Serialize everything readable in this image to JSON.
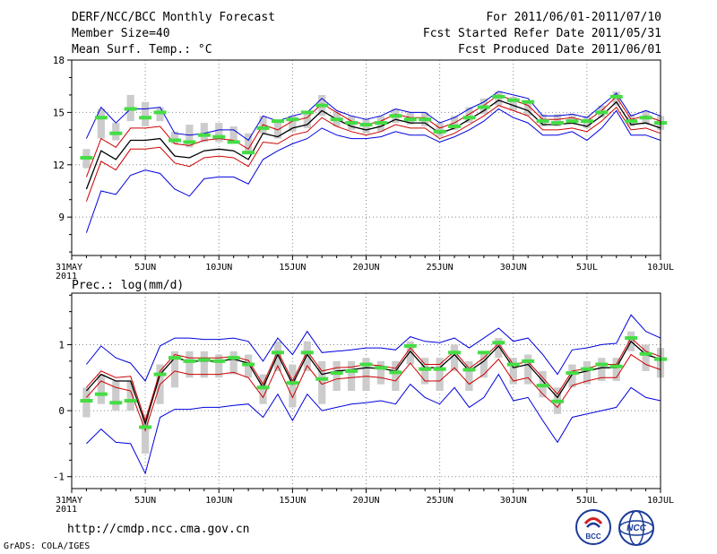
{
  "header": {
    "title": "DERF/NCC/BCC Monthly Forecast",
    "member_size": "Member Size=40",
    "variable": "Mean Surf. Temp.: °C",
    "period": "For 2011/06/01-2011/07/10",
    "fcst_started": "Fcst Started Refer Date 2011/05/31",
    "fcst_produced": "Fcst Produced Date 2011/06/01"
  },
  "precip_title": "Prec.: log(mm/d)",
  "footer": {
    "url": "http://cmdp.ncc.cma.gov.cn",
    "credit": "GrADS: COLA/IGES",
    "logo_bcc": "BCC",
    "logo_ncc": "NCC"
  },
  "colors": {
    "ensemble_mean": "#000000",
    "spread_inner": "#cc0000",
    "spread_outer": "#0000dd",
    "box": "#cccccc",
    "observed": "#44dd44",
    "grid": "#888888"
  },
  "chart_data": [
    {
      "type": "line",
      "title": "Mean Surf. Temp.: °C",
      "x_tick_labels": [
        "31MAY\n2011",
        "5JUN",
        "10JUN",
        "15JUN",
        "20JUN",
        "25JUN",
        "30JUN",
        "5JUL",
        "10JUL"
      ],
      "x_tick_days": [
        0,
        5,
        10,
        15,
        20,
        25,
        30,
        35,
        40
      ],
      "xlim": [
        0,
        40
      ],
      "ylim": [
        6.8,
        18
      ],
      "y_ticks": [
        9,
        12,
        15,
        18
      ],
      "days": [
        1,
        2,
        3,
        4,
        5,
        6,
        7,
        8,
        9,
        10,
        11,
        12,
        13,
        14,
        15,
        16,
        17,
        18,
        19,
        20,
        21,
        22,
        23,
        24,
        25,
        26,
        27,
        28,
        29,
        30,
        31,
        32,
        33,
        34,
        35,
        36,
        37,
        38,
        39,
        40
      ],
      "series": [
        {
          "name": "ensemble_mean",
          "values": [
            10.6,
            12.8,
            12.3,
            13.4,
            13.4,
            13.5,
            12.5,
            12.4,
            12.8,
            12.9,
            12.8,
            12.3,
            13.8,
            13.6,
            14.1,
            14.3,
            15.1,
            14.6,
            14.2,
            14.0,
            14.2,
            14.6,
            14.4,
            14.4,
            13.8,
            14.1,
            14.6,
            15.1,
            15.7,
            15.4,
            15.1,
            14.3,
            14.3,
            14.4,
            14.2,
            14.8,
            15.6,
            14.3,
            14.4,
            14.1
          ]
        },
        {
          "name": "inner_upper",
          "values": [
            11.3,
            13.5,
            13.0,
            14.1,
            14.1,
            14.2,
            13.2,
            13.1,
            13.4,
            13.5,
            13.4,
            12.9,
            14.3,
            14.0,
            14.5,
            14.7,
            15.5,
            15.0,
            14.5,
            14.3,
            14.5,
            14.9,
            14.7,
            14.7,
            14.1,
            14.4,
            14.9,
            15.4,
            16.0,
            15.7,
            15.4,
            14.6,
            14.6,
            14.7,
            14.5,
            15.1,
            15.9,
            14.6,
            14.8,
            14.5
          ]
        },
        {
          "name": "inner_lower",
          "values": [
            9.9,
            12.2,
            11.7,
            12.9,
            12.9,
            13.0,
            12.1,
            11.9,
            12.4,
            12.5,
            12.4,
            11.9,
            13.3,
            13.2,
            13.7,
            13.9,
            14.7,
            14.2,
            13.9,
            13.7,
            13.9,
            14.3,
            14.1,
            14.1,
            13.5,
            13.8,
            14.3,
            14.8,
            15.4,
            15.1,
            14.8,
            14.0,
            14.0,
            14.1,
            13.9,
            14.5,
            15.3,
            14.0,
            14.1,
            13.8
          ]
        },
        {
          "name": "outer_upper",
          "values": [
            13.5,
            15.3,
            14.4,
            15.2,
            15.2,
            15.3,
            13.8,
            13.7,
            13.8,
            14.0,
            14.0,
            13.4,
            14.8,
            14.5,
            14.8,
            15.0,
            15.8,
            15.1,
            14.8,
            14.6,
            14.8,
            15.2,
            15.0,
            15.0,
            14.4,
            14.7,
            15.2,
            15.6,
            16.2,
            16.0,
            15.8,
            14.8,
            14.8,
            14.9,
            14.7,
            15.4,
            16.1,
            14.8,
            15.1,
            14.8
          ]
        },
        {
          "name": "outer_lower",
          "values": [
            8.1,
            10.5,
            10.3,
            11.4,
            11.7,
            11.5,
            10.6,
            10.2,
            11.2,
            11.3,
            11.3,
            10.9,
            12.3,
            12.8,
            13.2,
            13.5,
            14.1,
            13.7,
            13.5,
            13.5,
            13.6,
            13.9,
            13.7,
            13.7,
            13.3,
            13.6,
            14.0,
            14.5,
            15.2,
            14.7,
            14.4,
            13.7,
            13.7,
            13.9,
            13.4,
            14.1,
            15.1,
            13.7,
            13.7,
            13.4
          ]
        }
      ],
      "box_low": [
        11.8,
        13.5,
        13.4,
        14.5,
        14.2,
        14.5,
        13.2,
        13.0,
        13.3,
        13.3,
        13.2,
        12.6,
        13.8,
        13.5,
        13.9,
        14.1,
        14.8,
        14.2,
        14.0,
        13.8,
        13.9,
        14.4,
        14.3,
        14.2,
        13.6,
        14.0,
        14.4,
        14.9,
        15.4,
        15.1,
        14.8,
        14.2,
        14.2,
        14.3,
        14.1,
        14.7,
        15.4,
        14.2,
        14.3,
        14.0
      ],
      "box_high": [
        12.9,
        15.2,
        14.4,
        16.0,
        15.6,
        15.3,
        13.9,
        14.3,
        14.4,
        14.4,
        14.2,
        13.8,
        14.8,
        14.6,
        14.8,
        15.0,
        16.0,
        15.0,
        14.8,
        14.6,
        14.8,
        15.2,
        15.0,
        15.0,
        14.4,
        14.8,
        15.3,
        15.8,
        16.2,
        15.9,
        15.7,
        14.9,
        14.9,
        14.9,
        14.8,
        15.4,
        16.2,
        14.9,
        15.1,
        14.8
      ],
      "observed": [
        12.4,
        14.7,
        13.8,
        15.2,
        14.7,
        15.0,
        13.4,
        13.3,
        13.7,
        13.6,
        13.3,
        12.7,
        14.1,
        14.5,
        14.6,
        15.0,
        15.4,
        14.6,
        14.4,
        14.3,
        14.4,
        14.8,
        14.6,
        14.6,
        13.9,
        14.2,
        14.7,
        15.3,
        15.9,
        15.7,
        15.6,
        14.5,
        14.4,
        14.5,
        14.5,
        15.0,
        15.9,
        14.5,
        14.7,
        14.4
      ]
    },
    {
      "type": "line",
      "title": "Prec.: log(mm/d)",
      "x_tick_labels": [
        "31MAY\n2011",
        "5JUN",
        "10JUN",
        "15JUN",
        "20JUN",
        "25JUN",
        "30JUN",
        "5JUL",
        "10JUL"
      ],
      "x_tick_days": [
        0,
        5,
        10,
        15,
        20,
        25,
        30,
        35,
        40
      ],
      "xlim": [
        0,
        40
      ],
      "ylim": [
        -1.18,
        1.78
      ],
      "y_ticks": [
        -1,
        0,
        1
      ],
      "days": [
        1,
        2,
        3,
        4,
        5,
        6,
        7,
        8,
        9,
        10,
        11,
        12,
        13,
        14,
        15,
        16,
        17,
        18,
        19,
        20,
        21,
        22,
        23,
        24,
        25,
        26,
        27,
        28,
        29,
        30,
        31,
        32,
        33,
        34,
        35,
        36,
        37,
        38,
        39,
        40
      ],
      "series": [
        {
          "name": "ensemble_mean",
          "values": [
            0.3,
            0.55,
            0.45,
            0.45,
            -0.2,
            0.55,
            0.8,
            0.75,
            0.75,
            0.75,
            0.78,
            0.72,
            0.35,
            0.85,
            0.4,
            0.85,
            0.55,
            0.6,
            0.62,
            0.65,
            0.64,
            0.6,
            0.9,
            0.65,
            0.65,
            0.85,
            0.6,
            0.75,
            0.98,
            0.65,
            0.7,
            0.45,
            0.2,
            0.55,
            0.6,
            0.65,
            0.65,
            1.05,
            0.85,
            0.78
          ]
        },
        {
          "name": "inner_upper",
          "values": [
            0.35,
            0.6,
            0.5,
            0.52,
            -0.15,
            0.6,
            0.85,
            0.8,
            0.8,
            0.8,
            0.82,
            0.76,
            0.4,
            0.9,
            0.45,
            0.9,
            0.6,
            0.65,
            0.66,
            0.7,
            0.68,
            0.64,
            0.95,
            0.7,
            0.7,
            0.9,
            0.64,
            0.8,
            1.02,
            0.7,
            0.74,
            0.5,
            0.25,
            0.6,
            0.64,
            0.7,
            0.7,
            1.1,
            0.9,
            0.82
          ]
        },
        {
          "name": "inner_lower",
          "values": [
            0.2,
            0.45,
            0.35,
            0.3,
            -0.3,
            0.4,
            0.6,
            0.55,
            0.55,
            0.55,
            0.58,
            0.5,
            0.2,
            0.68,
            0.2,
            0.68,
            0.4,
            0.48,
            0.5,
            0.52,
            0.5,
            0.45,
            0.72,
            0.45,
            0.45,
            0.65,
            0.4,
            0.55,
            0.78,
            0.45,
            0.5,
            0.25,
            0.05,
            0.38,
            0.45,
            0.5,
            0.5,
            0.85,
            0.7,
            0.62
          ]
        },
        {
          "name": "outer_upper",
          "values": [
            0.7,
            0.98,
            0.8,
            0.72,
            0.45,
            0.98,
            1.1,
            1.1,
            1.08,
            1.08,
            1.1,
            1.05,
            0.75,
            1.1,
            0.85,
            1.2,
            0.88,
            0.9,
            0.92,
            0.95,
            0.95,
            0.92,
            1.12,
            1.05,
            1.03,
            1.1,
            0.95,
            1.1,
            1.25,
            1.05,
            1.1,
            0.85,
            0.55,
            0.92,
            0.95,
            1.0,
            1.02,
            1.45,
            1.2,
            1.1
          ]
        },
        {
          "name": "outer_lower",
          "values": [
            -0.5,
            -0.28,
            -0.48,
            -0.5,
            -0.95,
            -0.1,
            0.02,
            0.02,
            0.05,
            0.05,
            0.08,
            0.1,
            -0.1,
            0.25,
            -0.15,
            0.25,
            0.0,
            0.05,
            0.1,
            0.12,
            0.15,
            0.1,
            0.4,
            0.2,
            0.1,
            0.35,
            0.05,
            0.2,
            0.55,
            0.15,
            0.2,
            -0.15,
            -0.48,
            -0.1,
            -0.05,
            0.0,
            0.05,
            0.35,
            0.2,
            0.15
          ]
        }
      ],
      "box_low": [
        -0.1,
        0.1,
        0.0,
        0.0,
        -0.65,
        0.1,
        0.35,
        0.5,
        0.5,
        0.5,
        0.55,
        0.5,
        0.1,
        0.6,
        0.05,
        0.6,
        0.1,
        0.3,
        0.3,
        0.3,
        0.4,
        0.3,
        0.7,
        0.4,
        0.3,
        0.6,
        0.3,
        0.5,
        0.8,
        0.4,
        0.4,
        0.2,
        -0.05,
        0.35,
        0.4,
        0.45,
        0.45,
        0.9,
        0.6,
        0.5
      ],
      "box_high": [
        0.35,
        0.55,
        0.45,
        0.45,
        -0.05,
        0.7,
        0.9,
        0.9,
        0.9,
        0.85,
        0.9,
        0.85,
        0.55,
        1.05,
        0.7,
        1.05,
        0.75,
        0.75,
        0.75,
        0.8,
        0.75,
        0.75,
        1.05,
        0.8,
        0.8,
        1.0,
        0.75,
        0.9,
        1.1,
        0.8,
        0.85,
        0.6,
        0.35,
        0.7,
        0.75,
        0.8,
        0.8,
        1.2,
        1.0,
        0.95
      ],
      "observed": [
        0.15,
        0.25,
        0.12,
        0.15,
        -0.25,
        0.55,
        0.8,
        0.75,
        0.77,
        0.75,
        0.8,
        0.7,
        0.35,
        0.88,
        0.42,
        0.88,
        0.48,
        0.57,
        0.6,
        0.7,
        0.65,
        0.58,
        0.98,
        0.63,
        0.63,
        0.88,
        0.62,
        0.88,
        1.03,
        0.7,
        0.75,
        0.38,
        0.14,
        0.57,
        0.63,
        0.7,
        0.67,
        1.1,
        0.86,
        0.78
      ]
    }
  ]
}
